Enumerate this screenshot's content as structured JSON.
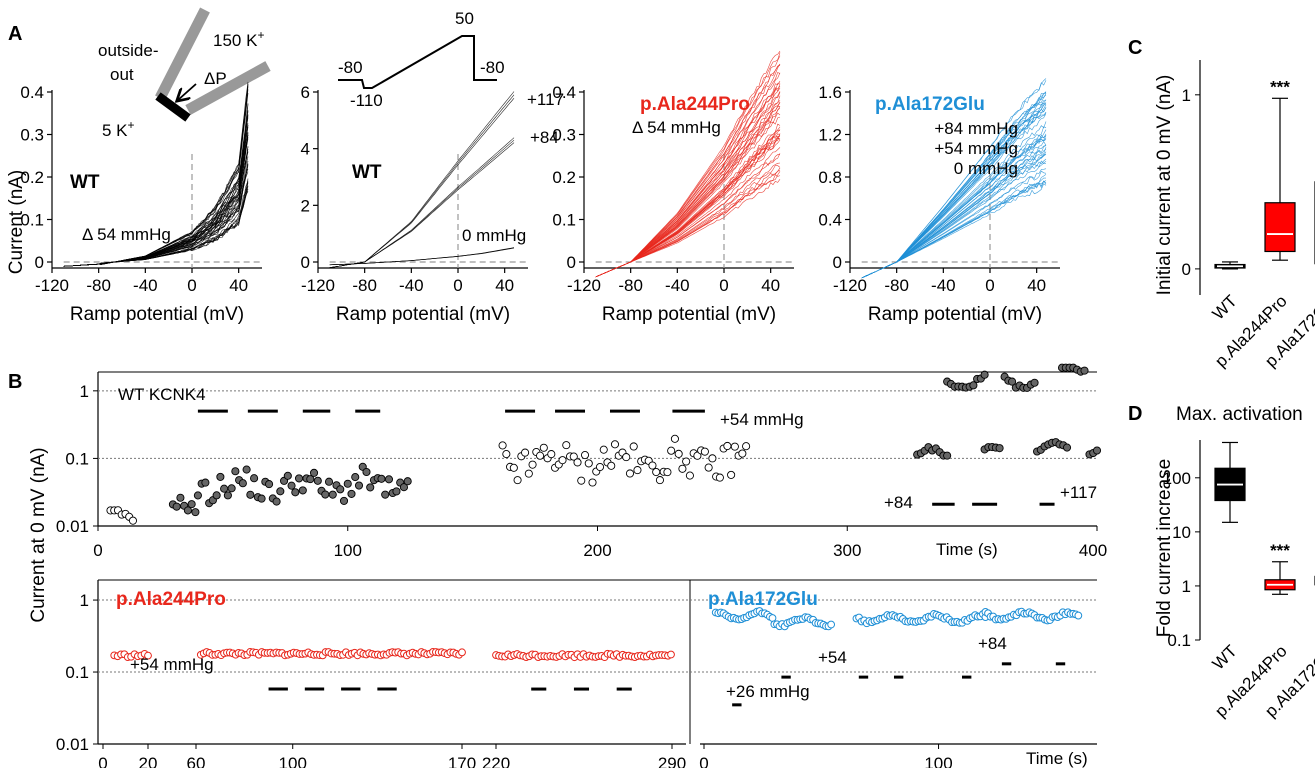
{
  "panels": {
    "A": "A",
    "B": "B",
    "C": "C",
    "D": "D"
  },
  "panelA": {
    "ylabel": "Current (nA)",
    "xlabel": "Ramp potential (mV)",
    "inset": {
      "outside": "outside-",
      "out": "out",
      "k150": "150 K",
      "k5": "5 K",
      "sup": "+",
      "dp": "ΔP"
    },
    "protocol": {
      "v1": "-80",
      "v2": "-110",
      "v3": "50",
      "v4": "-80"
    },
    "xticks": [
      "-120",
      "-80",
      "-40",
      "0",
      "40"
    ]
  },
  "chart_data": [
    {
      "type": "line",
      "label": "WT",
      "annotation": "Δ 54 mmHg",
      "xlim": [
        -120,
        60
      ],
      "ylim": [
        0,
        0.4
      ],
      "yticks": [
        "0",
        "0.1",
        "0.2",
        "0.3",
        "0.4"
      ],
      "color": "#000000",
      "series": [
        {
          "x": [
            -110,
            -80,
            -40,
            0,
            20,
            40,
            48
          ],
          "y": [
            -0.01,
            -0.005,
            0.01,
            0.05,
            0.09,
            0.16,
            0.3
          ]
        }
      ]
    },
    {
      "type": "line",
      "label": "WT",
      "xlim": [
        -120,
        60
      ],
      "ylim": [
        0,
        6
      ],
      "yticks": [
        "0",
        "2",
        "4",
        "6"
      ],
      "color": "#000000",
      "trace_labels": {
        "t117": "+117",
        "t84": "+84",
        "t0": "0 mmHg"
      },
      "series": [
        {
          "pressure": "+117",
          "x": [
            -110,
            -80,
            -40,
            0,
            20,
            48
          ],
          "y": [
            -0.2,
            0,
            1.4,
            3.5,
            4.5,
            5.9
          ]
        },
        {
          "pressure": "+84",
          "x": [
            -110,
            -80,
            -40,
            0,
            20,
            48
          ],
          "y": [
            -0.2,
            0,
            1.1,
            2.6,
            3.3,
            4.3
          ]
        },
        {
          "pressure": "0 mmHg",
          "x": [
            -110,
            -80,
            -40,
            0,
            20,
            48
          ],
          "y": [
            -0.1,
            -0.05,
            0.05,
            0.2,
            0.3,
            0.5
          ]
        }
      ]
    },
    {
      "type": "line",
      "label": "p.Ala244Pro",
      "annotation": "Δ 54 mmHg",
      "xlim": [
        -120,
        60
      ],
      "ylim": [
        0,
        0.4
      ],
      "yticks": [
        "0",
        "0.1",
        "0.2",
        "0.3",
        "0.4"
      ],
      "color": "#e8271c",
      "series": [
        {
          "x": [
            -110,
            -80,
            -40,
            0,
            20,
            48
          ],
          "y": [
            -0.035,
            0,
            0.08,
            0.19,
            0.26,
            0.35
          ]
        }
      ]
    },
    {
      "type": "line",
      "label": "p.Ala172Glu",
      "annotation": "+84 mmHg / +54 mmHg / 0 mmHg",
      "annotation_lines": [
        "+84 mmHg",
        "+54 mmHg",
        "0 mmHg"
      ],
      "xlim": [
        -120,
        60
      ],
      "ylim": [
        0,
        1.6
      ],
      "yticks": [
        "0",
        "0.4",
        "0.8",
        "1.2",
        "1.6"
      ],
      "color": "#1f8fd6",
      "series": [
        {
          "x": [
            -110,
            -80,
            -40,
            0,
            20,
            48
          ],
          "y": [
            -0.15,
            0,
            0.4,
            0.82,
            1.05,
            1.3
          ]
        }
      ]
    },
    {
      "type": "scatter",
      "panel": "B-top",
      "title": "WT  KCNK4",
      "ylabel": "Current at 0 mV (nA)",
      "xlabel": "Time (s)",
      "xlim": [
        0,
        400
      ],
      "ylim": [
        0.01,
        1.9
      ],
      "ylog": true,
      "yticks": [
        "0.01",
        "0.1",
        "1"
      ],
      "xticks": [
        "0",
        "100",
        "200",
        "300",
        "400"
      ],
      "pressure_labels": {
        "p54": "+54 mmHg",
        "p84": "+84",
        "p117": "+117"
      },
      "segments": [
        {
          "x0": 5,
          "x1": 15,
          "y0": 0.012,
          "y1": 0.014,
          "fill": "white"
        },
        {
          "x0": 30,
          "x1": 40,
          "y0": 0.015,
          "y1": 0.022,
          "fill": "gray"
        },
        {
          "x0": 40,
          "x1": 125,
          "y0": 0.025,
          "y1": 0.06,
          "fill": "gray"
        },
        {
          "x0": 162,
          "x1": 260,
          "y0": 0.05,
          "y1": 0.16,
          "fill": "white"
        },
        {
          "x0": 328,
          "x1": 340,
          "y0": 0.1,
          "y1": 0.12,
          "fill": "gray"
        },
        {
          "x0": 340,
          "x1": 355,
          "y0": 1.3,
          "y1": 1.5,
          "fill": "gray"
        },
        {
          "x0": 355,
          "x1": 362,
          "y0": 0.11,
          "y1": 0.12,
          "fill": "gray"
        },
        {
          "x0": 363,
          "x1": 375,
          "y0": 1.3,
          "y1": 1.5,
          "fill": "gray"
        },
        {
          "x0": 376,
          "x1": 388,
          "y0": 0.13,
          "y1": 0.14,
          "fill": "gray"
        },
        {
          "x0": 386,
          "x1": 396,
          "y0": 2.3,
          "y1": 2.5,
          "fill": "gray"
        },
        {
          "x0": 397,
          "x1": 410,
          "y0": 0.14,
          "y1": 0.15,
          "fill": "gray"
        }
      ]
    },
    {
      "type": "scatter",
      "panel": "B-bottom-left",
      "label": "p.Ala244Pro",
      "ylim": [
        0.01,
        1.9
      ],
      "ylog": true,
      "color": "#e8271c",
      "xticks": [
        "0",
        "20",
        "60",
        "100",
        "170",
        "220",
        "290"
      ],
      "pressure_label": "+54 mmHg",
      "segments": [
        {
          "x0": 5,
          "x1": 20,
          "y": 0.17
        },
        {
          "x0": 62,
          "x1": 170,
          "y": 0.18
        },
        {
          "x0": 220,
          "x1": 290,
          "y": 0.17
        }
      ]
    },
    {
      "type": "scatter",
      "panel": "B-bottom-right",
      "label": "p.Ala172Glu",
      "ylim": [
        0.01,
        1.9
      ],
      "ylog": true,
      "color": "#1f8fd6",
      "xticks": [
        "0",
        "100"
      ],
      "xlabel": "Time (s)",
      "pressure_labels": {
        "p26": "+26 mmHg",
        "p54": "+54",
        "p84": "+84"
      },
      "segments": [
        {
          "x0": 5,
          "x1": 30,
          "y": 0.6
        },
        {
          "x0": 30,
          "x1": 55,
          "y": 0.5
        },
        {
          "x0": 65,
          "x1": 120,
          "y": 0.55
        },
        {
          "x0": 120,
          "x1": 160,
          "y": 0.6
        }
      ]
    },
    {
      "type": "box",
      "panel": "C",
      "ylabel": "Initial current at 0 mV (nA)",
      "ylim": [
        -0.15,
        1.2
      ],
      "yticks": [
        "0",
        "1"
      ],
      "categories": [
        "WT",
        "p.Ala244Pro",
        "p.Ala172Glu"
      ],
      "colors": [
        "#000000",
        "#ff0000",
        "#1a86d0"
      ],
      "boxes": [
        {
          "min": 0.0,
          "q1": 0.005,
          "median": 0.015,
          "q3": 0.025,
          "max": 0.04
        },
        {
          "min": 0.05,
          "q1": 0.1,
          "median": 0.2,
          "q3": 0.38,
          "max": 0.98,
          "sig": "***"
        },
        {
          "min": 0.01,
          "q1": 0.03,
          "median": 0.31,
          "q3": 0.5,
          "max": 0.94,
          "sig": "***"
        }
      ]
    },
    {
      "type": "box",
      "panel": "D",
      "title": "Max. activation",
      "ylabel": "Fold current increase",
      "ylog": true,
      "ylim": [
        0.1,
        500
      ],
      "yticks": [
        "0.1",
        "1",
        "10",
        "100"
      ],
      "categories": [
        "WT",
        "p.Ala244Pro",
        "p.Ala172Glu"
      ],
      "colors": [
        "#000000",
        "#ff0000",
        "#1a86d0"
      ],
      "boxes": [
        {
          "min": 15,
          "q1": 38,
          "median": 75,
          "q3": 150,
          "max": 450
        },
        {
          "min": 0.7,
          "q1": 0.85,
          "median": 1.05,
          "q3": 1.3,
          "max": 2.8,
          "sig": "***"
        },
        {
          "min": 0.9,
          "q1": 1.05,
          "median": 1.25,
          "q3": 1.5,
          "max": 2.2,
          "sig": "***"
        }
      ]
    }
  ]
}
